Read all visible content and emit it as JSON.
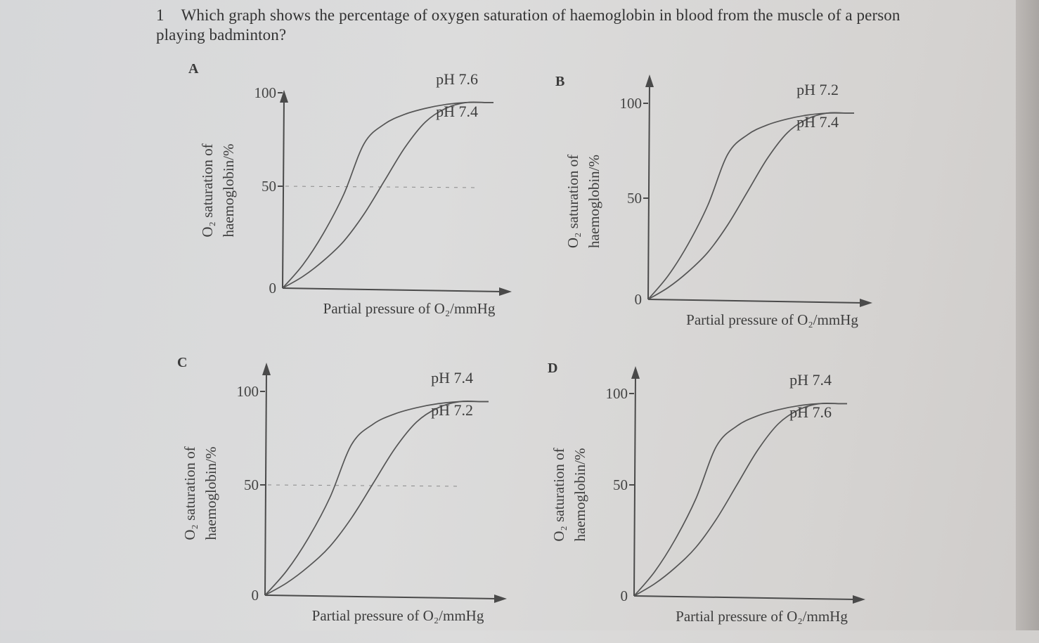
{
  "question": {
    "number": "1",
    "text": "Which graph shows the percentage of oxygen saturation of haemoglobin in blood from the muscle of a person playing badminton?"
  },
  "axis": {
    "ylabel_line1": "O₂ saturation of",
    "ylabel_line2": "haemoglobin/%",
    "xlabel": "Partial pressure of O₂/mmHg",
    "ticks": [
      "0",
      "50",
      "100"
    ]
  },
  "panels": [
    {
      "letter": "A",
      "upper_label": "pH 7.6",
      "lower_label": "pH 7.4",
      "dashed_50": true
    },
    {
      "letter": "B",
      "upper_label": "pH 7.2",
      "lower_label": "pH 7.4",
      "dashed_50": false
    },
    {
      "letter": "C",
      "upper_label": "pH 7.4",
      "lower_label": "pH 7.2",
      "dashed_50": true
    },
    {
      "letter": "D",
      "upper_label": "pH 7.4",
      "lower_label": "pH 7.6",
      "dashed_50": false
    }
  ],
  "chart_data": [
    {
      "type": "line",
      "title": "A",
      "xlabel": "Partial pressure of O₂/mmHg",
      "ylabel": "O₂ saturation of haemoglobin/%",
      "ylim": [
        0,
        100
      ],
      "yticks": [
        0,
        50,
        100
      ],
      "grid": false,
      "annotations": [
        "dashed line at 50%"
      ],
      "x": [
        0,
        10,
        20,
        30,
        40,
        50,
        60,
        70,
        80,
        90,
        100
      ],
      "series": [
        {
          "name": "pH 7.6",
          "values": [
            0,
            12,
            28,
            48,
            74,
            84,
            89,
            92,
            94,
            95,
            95
          ]
        },
        {
          "name": "pH 7.4",
          "values": [
            0,
            6,
            14,
            24,
            38,
            55,
            72,
            85,
            92,
            95,
            95
          ]
        }
      ]
    },
    {
      "type": "line",
      "title": "B",
      "xlabel": "Partial pressure of O₂/mmHg",
      "ylabel": "O₂ saturation of haemoglobin/%",
      "ylim": [
        0,
        100
      ],
      "yticks": [
        0,
        50,
        100
      ],
      "grid": false,
      "x": [
        0,
        10,
        20,
        30,
        40,
        50,
        60,
        70,
        80,
        90,
        100
      ],
      "series": [
        {
          "name": "pH 7.2",
          "values": [
            0,
            12,
            28,
            48,
            74,
            84,
            89,
            92,
            94,
            95,
            95
          ]
        },
        {
          "name": "pH 7.4",
          "values": [
            0,
            6,
            14,
            24,
            38,
            55,
            72,
            85,
            92,
            95,
            95
          ]
        }
      ]
    },
    {
      "type": "line",
      "title": "C",
      "xlabel": "Partial pressure of O₂/mmHg",
      "ylabel": "O₂ saturation of haemoglobin/%",
      "ylim": [
        0,
        100
      ],
      "yticks": [
        0,
        50,
        100
      ],
      "grid": false,
      "annotations": [
        "dashed line at 50%"
      ],
      "x": [
        0,
        10,
        20,
        30,
        40,
        50,
        60,
        70,
        80,
        90,
        100
      ],
      "series": [
        {
          "name": "pH 7.4",
          "values": [
            0,
            12,
            28,
            48,
            74,
            84,
            89,
            92,
            94,
            95,
            95
          ]
        },
        {
          "name": "pH 7.2",
          "values": [
            0,
            6,
            14,
            24,
            38,
            55,
            72,
            85,
            92,
            95,
            95
          ]
        }
      ]
    },
    {
      "type": "line",
      "title": "D",
      "xlabel": "Partial pressure of O₂/mmHg",
      "ylabel": "O₂ saturation of haemoglobin/%",
      "ylim": [
        0,
        100
      ],
      "yticks": [
        0,
        50,
        100
      ],
      "grid": false,
      "x": [
        0,
        10,
        20,
        30,
        40,
        50,
        60,
        70,
        80,
        90,
        100
      ],
      "series": [
        {
          "name": "pH 7.4",
          "values": [
            0,
            12,
            28,
            48,
            74,
            84,
            89,
            92,
            94,
            95,
            95
          ]
        },
        {
          "name": "pH 7.6",
          "values": [
            0,
            6,
            14,
            24,
            38,
            55,
            72,
            85,
            92,
            95,
            95
          ]
        }
      ]
    }
  ]
}
